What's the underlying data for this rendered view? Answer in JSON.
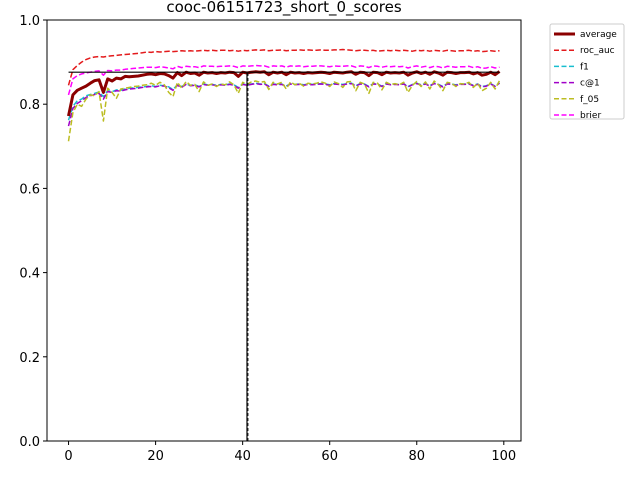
{
  "chart_data": {
    "type": "line",
    "title": "cooc-06151723_short_0_scores",
    "xlabel": "",
    "ylabel": "",
    "xlim": [
      -4.95,
      103.95
    ],
    "ylim": [
      0.0,
      1.0
    ],
    "xticks": [
      0,
      20,
      40,
      60,
      80,
      100
    ],
    "yticks": [
      0.0,
      0.2,
      0.4,
      0.6,
      0.8,
      1.0
    ],
    "xtick_labels": [
      "0",
      "20",
      "40",
      "60",
      "80",
      "100"
    ],
    "ytick_labels": [
      "0.0",
      "0.2",
      "0.4",
      "0.6",
      "0.8",
      "1.0"
    ],
    "grid": false,
    "legend_position": "outside-top-right",
    "x": [
      0,
      1,
      2,
      3,
      4,
      5,
      6,
      7,
      8,
      9,
      10,
      11,
      12,
      13,
      14,
      15,
      16,
      17,
      18,
      19,
      20,
      21,
      22,
      23,
      24,
      25,
      26,
      27,
      28,
      29,
      30,
      31,
      32,
      33,
      34,
      35,
      36,
      37,
      38,
      39,
      40,
      41,
      42,
      43,
      44,
      45,
      46,
      47,
      48,
      49,
      50,
      51,
      52,
      53,
      54,
      55,
      56,
      57,
      58,
      59,
      60,
      61,
      62,
      63,
      64,
      65,
      66,
      67,
      68,
      69,
      70,
      71,
      72,
      73,
      74,
      75,
      76,
      77,
      78,
      79,
      80,
      81,
      82,
      83,
      84,
      85,
      86,
      87,
      88,
      89,
      90,
      91,
      92,
      93,
      94,
      95,
      96,
      97,
      98,
      99
    ],
    "series": [
      {
        "name": "average",
        "color": "#8b0000",
        "style": "solid",
        "width": 3,
        "values": [
          0.772,
          0.822,
          0.833,
          0.838,
          0.843,
          0.85,
          0.856,
          0.858,
          0.828,
          0.86,
          0.855,
          0.862,
          0.86,
          0.866,
          0.865,
          0.866,
          0.867,
          0.869,
          0.871,
          0.872,
          0.87,
          0.873,
          0.872,
          0.868,
          0.862,
          0.875,
          0.868,
          0.876,
          0.873,
          0.874,
          0.869,
          0.876,
          0.874,
          0.875,
          0.873,
          0.875,
          0.874,
          0.876,
          0.875,
          0.866,
          0.876,
          0.874,
          0.876,
          0.877,
          0.876,
          0.877,
          0.87,
          0.876,
          0.874,
          0.876,
          0.87,
          0.876,
          0.874,
          0.875,
          0.873,
          0.875,
          0.874,
          0.875,
          0.876,
          0.875,
          0.873,
          0.876,
          0.875,
          0.874,
          0.876,
          0.877,
          0.871,
          0.876,
          0.875,
          0.868,
          0.876,
          0.875,
          0.87,
          0.876,
          0.874,
          0.875,
          0.874,
          0.876,
          0.869,
          0.874,
          0.877,
          0.873,
          0.876,
          0.871,
          0.877,
          0.874,
          0.869,
          0.876,
          0.875,
          0.873,
          0.875,
          0.875,
          0.876,
          0.872,
          0.875,
          0.869,
          0.871,
          0.876,
          0.87,
          0.878
        ]
      },
      {
        "name": "roc_auc",
        "color": "#e31a1c",
        "style": "dashed",
        "width": 1.5,
        "values": [
          0.845,
          0.882,
          0.892,
          0.9,
          0.906,
          0.91,
          0.912,
          0.913,
          0.912,
          0.914,
          0.915,
          0.916,
          0.917,
          0.918,
          0.919,
          0.92,
          0.921,
          0.922,
          0.924,
          0.923,
          0.925,
          0.924,
          0.925,
          0.926,
          0.925,
          0.926,
          0.927,
          0.926,
          0.927,
          0.926,
          0.927,
          0.928,
          0.927,
          0.928,
          0.927,
          0.928,
          0.928,
          0.927,
          0.928,
          0.926,
          0.928,
          0.927,
          0.928,
          0.929,
          0.928,
          0.929,
          0.927,
          0.928,
          0.928,
          0.929,
          0.927,
          0.928,
          0.928,
          0.929,
          0.928,
          0.929,
          0.928,
          0.928,
          0.929,
          0.928,
          0.928,
          0.929,
          0.929,
          0.93,
          0.929,
          0.928,
          0.927,
          0.928,
          0.928,
          0.927,
          0.928,
          0.926,
          0.927,
          0.928,
          0.927,
          0.928,
          0.927,
          0.928,
          0.927,
          0.926,
          0.928,
          0.927,
          0.928,
          0.926,
          0.928,
          0.927,
          0.926,
          0.928,
          0.927,
          0.926,
          0.927,
          0.927,
          0.928,
          0.926,
          0.927,
          0.925,
          0.926,
          0.927,
          0.926,
          0.927
        ]
      },
      {
        "name": "f1",
        "color": "#17becf",
        "style": "dashed",
        "width": 1.5,
        "values": [
          0.762,
          0.795,
          0.808,
          0.812,
          0.82,
          0.823,
          0.826,
          0.829,
          0.818,
          0.832,
          0.83,
          0.834,
          0.833,
          0.836,
          0.838,
          0.839,
          0.84,
          0.841,
          0.842,
          0.844,
          0.842,
          0.845,
          0.844,
          0.841,
          0.835,
          0.846,
          0.842,
          0.848,
          0.845,
          0.846,
          0.842,
          0.848,
          0.846,
          0.847,
          0.845,
          0.847,
          0.846,
          0.848,
          0.846,
          0.84,
          0.848,
          0.846,
          0.848,
          0.85,
          0.848,
          0.849,
          0.843,
          0.848,
          0.847,
          0.848,
          0.843,
          0.849,
          0.847,
          0.848,
          0.846,
          0.848,
          0.847,
          0.848,
          0.849,
          0.848,
          0.846,
          0.849,
          0.848,
          0.847,
          0.849,
          0.85,
          0.844,
          0.849,
          0.848,
          0.842,
          0.849,
          0.848,
          0.843,
          0.849,
          0.847,
          0.848,
          0.847,
          0.849,
          0.842,
          0.847,
          0.85,
          0.846,
          0.849,
          0.844,
          0.85,
          0.847,
          0.842,
          0.849,
          0.848,
          0.846,
          0.848,
          0.848,
          0.849,
          0.845,
          0.848,
          0.842,
          0.844,
          0.849,
          0.843,
          0.851
        ]
      },
      {
        "name": "c@1",
        "color": "#a000c8",
        "style": "dashed",
        "width": 1.5,
        "values": [
          0.748,
          0.79,
          0.802,
          0.808,
          0.816,
          0.82,
          0.823,
          0.826,
          0.812,
          0.83,
          0.828,
          0.832,
          0.831,
          0.834,
          0.836,
          0.837,
          0.838,
          0.84,
          0.841,
          0.842,
          0.841,
          0.844,
          0.843,
          0.839,
          0.833,
          0.845,
          0.84,
          0.847,
          0.844,
          0.845,
          0.841,
          0.847,
          0.845,
          0.846,
          0.844,
          0.846,
          0.845,
          0.847,
          0.845,
          0.838,
          0.847,
          0.845,
          0.847,
          0.849,
          0.847,
          0.848,
          0.842,
          0.847,
          0.846,
          0.847,
          0.842,
          0.848,
          0.846,
          0.847,
          0.845,
          0.847,
          0.846,
          0.847,
          0.848,
          0.847,
          0.845,
          0.848,
          0.847,
          0.846,
          0.848,
          0.849,
          0.843,
          0.848,
          0.847,
          0.841,
          0.848,
          0.847,
          0.842,
          0.848,
          0.846,
          0.847,
          0.846,
          0.848,
          0.841,
          0.846,
          0.849,
          0.845,
          0.848,
          0.843,
          0.849,
          0.846,
          0.841,
          0.848,
          0.847,
          0.845,
          0.847,
          0.847,
          0.848,
          0.844,
          0.847,
          0.841,
          0.843,
          0.848,
          0.842,
          0.85
        ]
      },
      {
        "name": "f_05",
        "color": "#bcbd22",
        "style": "dashed",
        "width": 1.5,
        "values": [
          0.712,
          0.78,
          0.8,
          0.795,
          0.812,
          0.822,
          0.82,
          0.83,
          0.76,
          0.838,
          0.828,
          0.814,
          0.836,
          0.838,
          0.84,
          0.842,
          0.843,
          0.845,
          0.846,
          0.85,
          0.845,
          0.852,
          0.846,
          0.828,
          0.818,
          0.852,
          0.838,
          0.854,
          0.845,
          0.847,
          0.83,
          0.853,
          0.845,
          0.848,
          0.842,
          0.848,
          0.846,
          0.853,
          0.846,
          0.826,
          0.852,
          0.847,
          0.853,
          0.855,
          0.852,
          0.854,
          0.835,
          0.852,
          0.848,
          0.852,
          0.836,
          0.853,
          0.846,
          0.85,
          0.843,
          0.85,
          0.848,
          0.85,
          0.853,
          0.85,
          0.842,
          0.853,
          0.849,
          0.84,
          0.853,
          0.854,
          0.832,
          0.852,
          0.848,
          0.826,
          0.852,
          0.85,
          0.834,
          0.852,
          0.847,
          0.849,
          0.846,
          0.852,
          0.828,
          0.845,
          0.854,
          0.842,
          0.853,
          0.836,
          0.855,
          0.846,
          0.832,
          0.852,
          0.85,
          0.842,
          0.849,
          0.848,
          0.852,
          0.84,
          0.85,
          0.832,
          0.838,
          0.852,
          0.836,
          0.856
        ]
      },
      {
        "name": "brier",
        "color": "#ff00ff",
        "style": "dashed",
        "width": 1.5,
        "values": [
          0.822,
          0.86,
          0.868,
          0.872,
          0.874,
          0.876,
          0.878,
          0.879,
          0.869,
          0.88,
          0.879,
          0.881,
          0.881,
          0.883,
          0.884,
          0.885,
          0.886,
          0.887,
          0.888,
          0.888,
          0.887,
          0.889,
          0.888,
          0.886,
          0.884,
          0.89,
          0.887,
          0.89,
          0.889,
          0.889,
          0.887,
          0.891,
          0.89,
          0.89,
          0.889,
          0.89,
          0.89,
          0.891,
          0.89,
          0.887,
          0.891,
          0.89,
          0.891,
          0.892,
          0.891,
          0.891,
          0.888,
          0.891,
          0.89,
          0.891,
          0.888,
          0.891,
          0.89,
          0.891,
          0.889,
          0.89,
          0.89,
          0.891,
          0.891,
          0.89,
          0.889,
          0.891,
          0.89,
          0.89,
          0.891,
          0.891,
          0.888,
          0.891,
          0.89,
          0.887,
          0.891,
          0.89,
          0.888,
          0.89,
          0.889,
          0.89,
          0.889,
          0.89,
          0.886,
          0.889,
          0.891,
          0.888,
          0.89,
          0.887,
          0.89,
          0.889,
          0.886,
          0.89,
          0.889,
          0.888,
          0.889,
          0.889,
          0.89,
          0.887,
          0.889,
          0.885,
          0.886,
          0.889,
          0.886,
          0.888
        ]
      }
    ],
    "reference_lines": [
      {
        "kind": "horizontal",
        "y": 0.876,
        "x_range": [
          0,
          99
        ],
        "color": "#000000"
      },
      {
        "kind": "vertical",
        "x": 41,
        "color": "#000000"
      }
    ]
  }
}
